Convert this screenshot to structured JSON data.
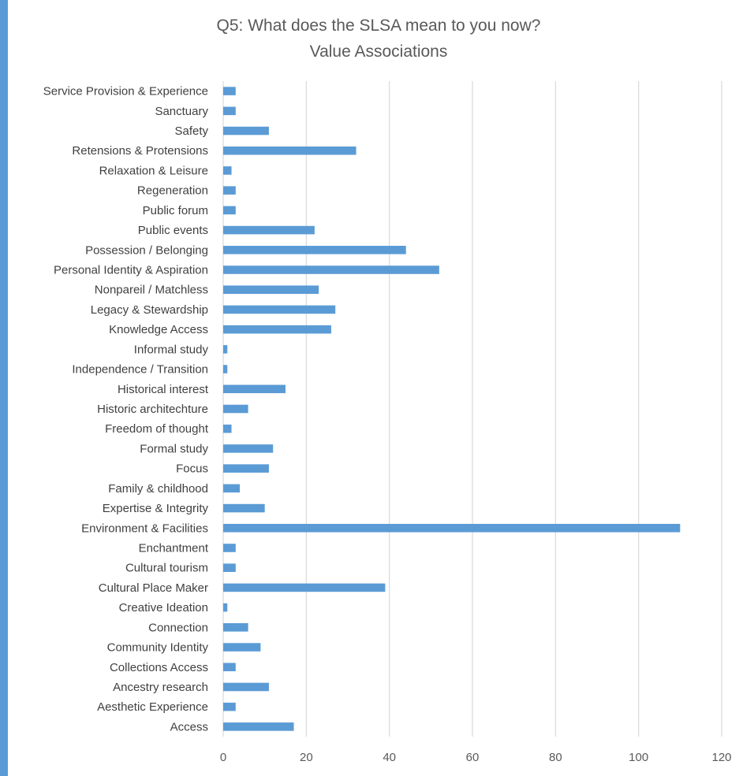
{
  "chart_data": {
    "type": "bar",
    "orientation": "horizontal",
    "title": "Q5: What does the SLSA mean to you now?",
    "subtitle": "Value Associations",
    "xlabel": "",
    "ylabel": "",
    "xlim": [
      0,
      120
    ],
    "xticks": [
      "0",
      "20",
      "40",
      "60",
      "80",
      "100",
      "120"
    ],
    "grid": true,
    "legend": "none",
    "bar_color": "#5b9bd5",
    "categories": [
      "Service Provision & Experience",
      "Sanctuary",
      "Safety",
      "Retensions & Protensions",
      "Relaxation & Leisure",
      "Regeneration",
      "Public forum",
      "Public events",
      "Possession / Belonging",
      "Personal Identity & Aspiration",
      "Nonpareil / Matchless",
      "Legacy & Stewardship",
      "Knowledge Access",
      "Informal study",
      "Independence / Transition",
      "Historical interest",
      "Historic architechture",
      "Freedom of thought",
      "Formal study",
      "Focus",
      "Family & childhood",
      "Expertise & Integrity",
      "Environment & Facilities",
      "Enchantment",
      "Cultural tourism",
      "Cultural Place Maker",
      "Creative Ideation",
      "Connection",
      "Community Identity",
      "Collections Access",
      "Ancestry research",
      "Aesthetic Experience",
      "Access"
    ],
    "values": [
      3,
      3,
      11,
      32,
      2,
      3,
      3,
      22,
      44,
      52,
      23,
      27,
      26,
      1,
      1,
      15,
      6,
      2,
      12,
      11,
      4,
      10,
      110,
      3,
      3,
      39,
      1,
      6,
      9,
      3,
      11,
      3,
      17
    ]
  }
}
